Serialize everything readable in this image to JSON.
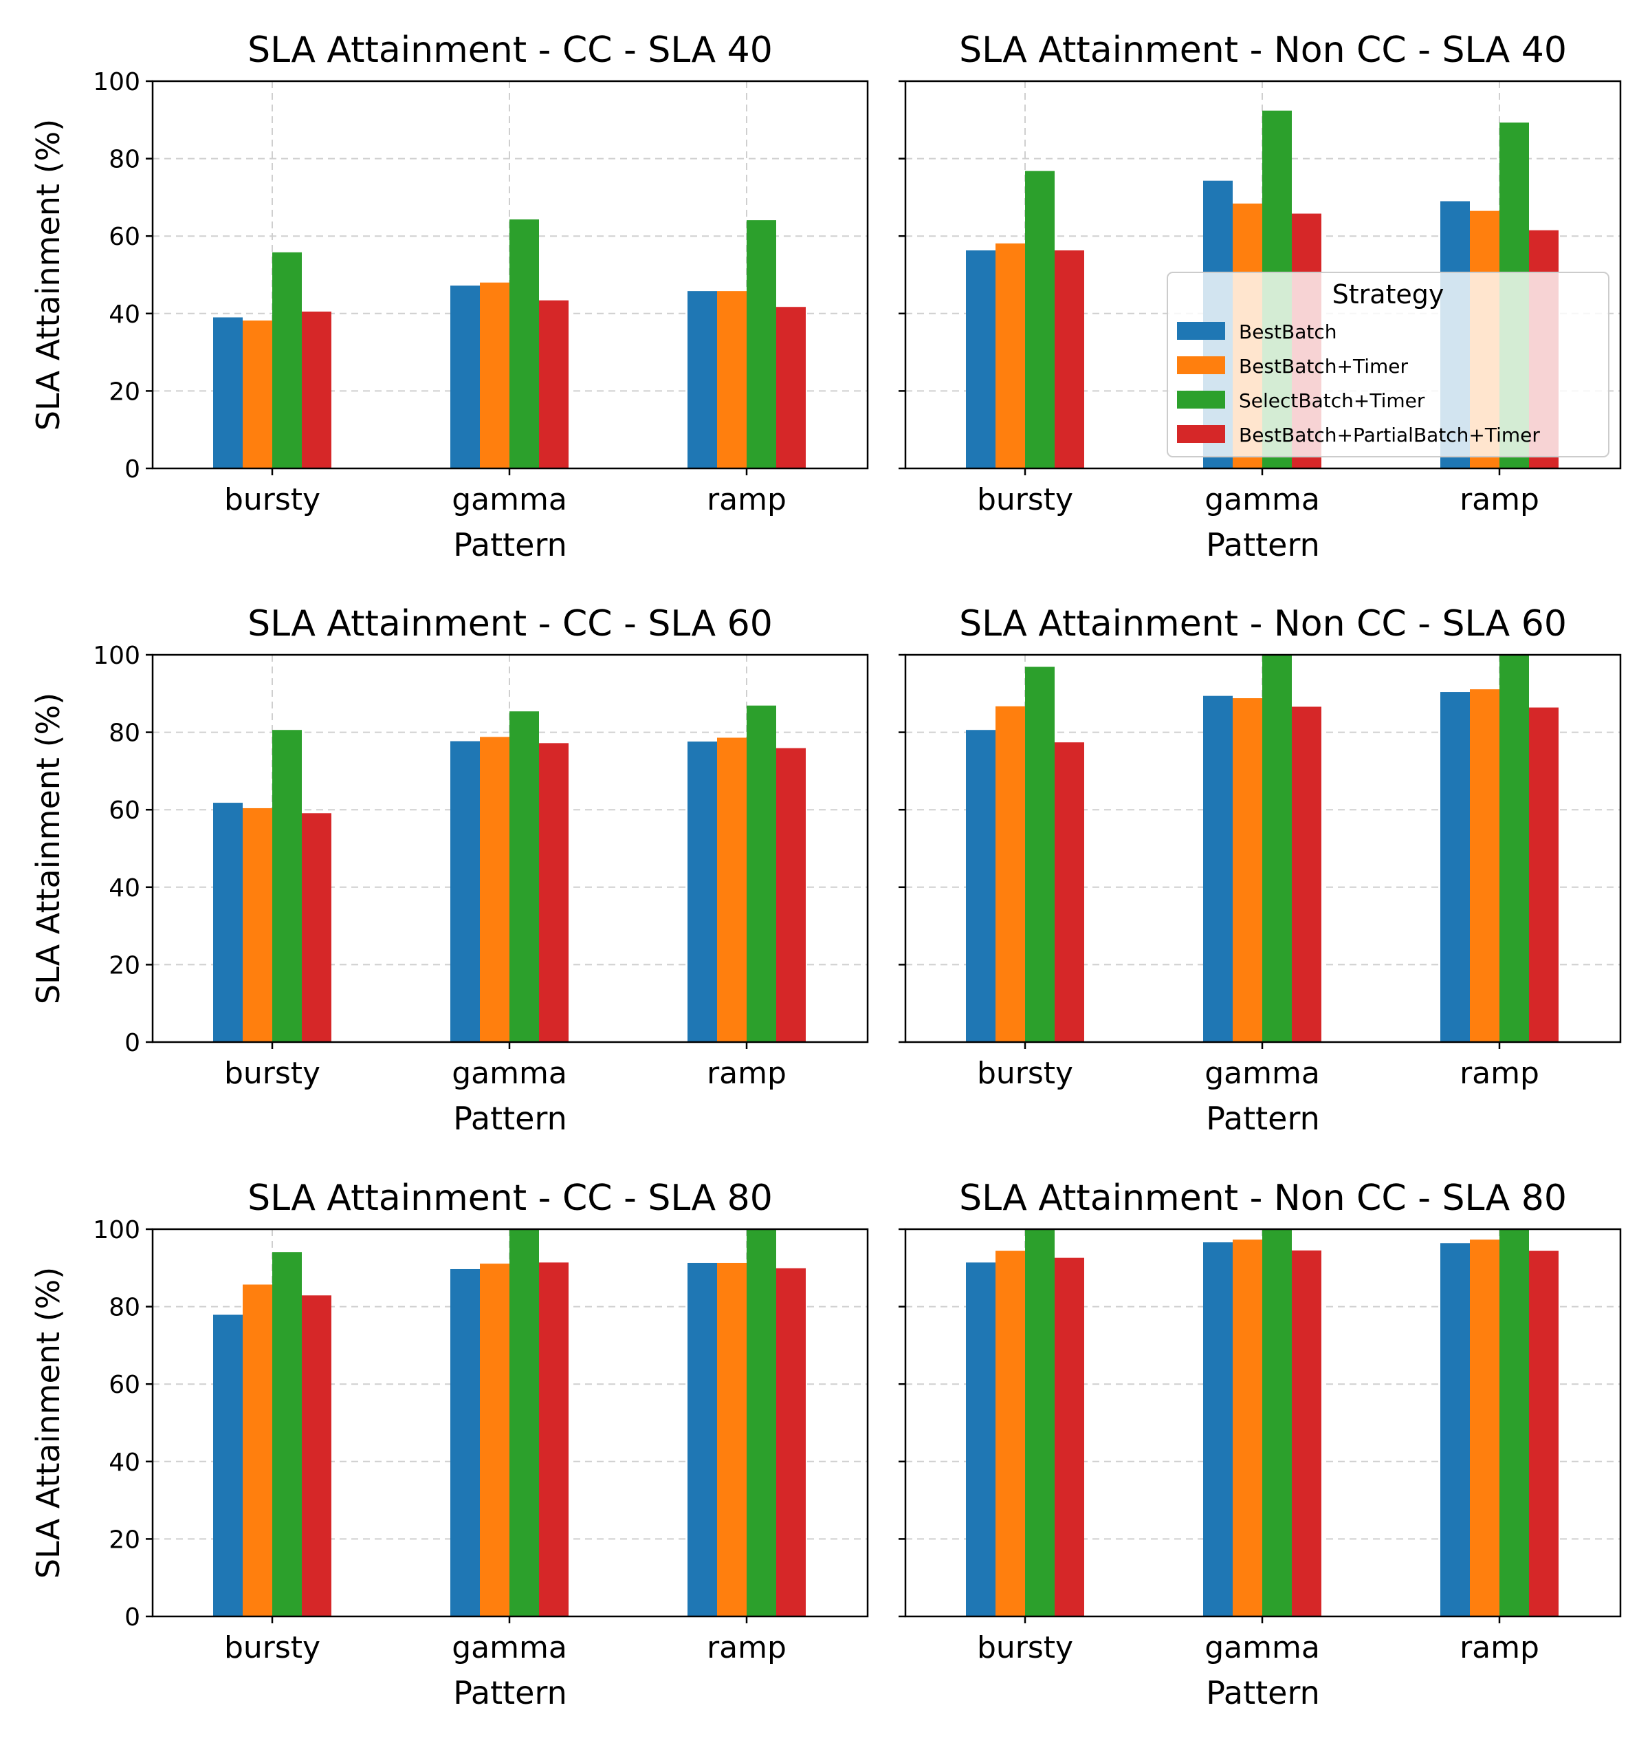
{
  "figure": {
    "xlabel": "Pattern",
    "ylabel": "SLA Attainment (%)",
    "legend_title": "Strategy"
  },
  "strategies": [
    {
      "name": "BestBatch",
      "color": "#1f77b4"
    },
    {
      "name": "BestBatch+Timer",
      "color": "#ff7f0e"
    },
    {
      "name": "SelectBatch+Timer",
      "color": "#2ca02c"
    },
    {
      "name": "BestBatch+PartialBatch+Timer",
      "color": "#d62728"
    }
  ],
  "chart_data": [
    {
      "type": "bar",
      "title": "SLA Attainment - CC - SLA 40",
      "xlabel": "Pattern",
      "ylabel": "SLA Attainment (%)",
      "ylim": [
        0,
        100
      ],
      "yticks": [
        0,
        20,
        40,
        60,
        80,
        100
      ],
      "grid": true,
      "categories": [
        "bursty",
        "gamma",
        "ramp"
      ],
      "series": [
        {
          "name": "BestBatch",
          "values": [
            39,
            47.2,
            45.8
          ]
        },
        {
          "name": "BestBatch+Timer",
          "values": [
            38.2,
            48,
            45.8
          ]
        },
        {
          "name": "SelectBatch+Timer",
          "values": [
            55.8,
            64.3,
            64.1
          ]
        },
        {
          "name": "BestBatch+PartialBatch+Timer",
          "values": [
            40.5,
            43.4,
            41.7
          ]
        }
      ]
    },
    {
      "type": "bar",
      "title": "SLA Attainment - Non CC - SLA 40",
      "xlabel": "Pattern",
      "ylim": [
        0,
        100
      ],
      "grid": true,
      "legend": "right",
      "categories": [
        "bursty",
        "gamma",
        "ramp"
      ],
      "series": [
        {
          "name": "BestBatch",
          "values": [
            56.3,
            74.3,
            69
          ]
        },
        {
          "name": "BestBatch+Timer",
          "values": [
            58.1,
            68.4,
            66.5
          ]
        },
        {
          "name": "SelectBatch+Timer",
          "values": [
            76.8,
            92.4,
            89.3
          ]
        },
        {
          "name": "BestBatch+PartialBatch+Timer",
          "values": [
            56.3,
            65.8,
            61.5
          ]
        }
      ]
    },
    {
      "type": "bar",
      "title": "SLA Attainment - CC - SLA 60",
      "xlabel": "Pattern",
      "ylabel": "SLA Attainment (%)",
      "ylim": [
        0,
        100
      ],
      "yticks": [
        0,
        20,
        40,
        60,
        80,
        100
      ],
      "grid": true,
      "categories": [
        "bursty",
        "gamma",
        "ramp"
      ],
      "series": [
        {
          "name": "BestBatch",
          "values": [
            61.8,
            77.7,
            77.6
          ]
        },
        {
          "name": "BestBatch+Timer",
          "values": [
            60.4,
            78.8,
            78.6
          ]
        },
        {
          "name": "SelectBatch+Timer",
          "values": [
            80.6,
            85.4,
            86.9
          ]
        },
        {
          "name": "BestBatch+PartialBatch+Timer",
          "values": [
            59.1,
            77.2,
            75.9
          ]
        }
      ]
    },
    {
      "type": "bar",
      "title": "SLA Attainment - Non CC - SLA 60",
      "xlabel": "Pattern",
      "ylim": [
        0,
        100
      ],
      "grid": true,
      "categories": [
        "bursty",
        "gamma",
        "ramp"
      ],
      "series": [
        {
          "name": "BestBatch",
          "values": [
            80.6,
            89.4,
            90.4
          ]
        },
        {
          "name": "BestBatch+Timer",
          "values": [
            86.7,
            88.8,
            91.1
          ]
        },
        {
          "name": "SelectBatch+Timer",
          "values": [
            96.9,
            100,
            100
          ]
        },
        {
          "name": "BestBatch+PartialBatch+Timer",
          "values": [
            77.4,
            86.6,
            86.4
          ]
        }
      ]
    },
    {
      "type": "bar",
      "title": "SLA Attainment - CC - SLA 80",
      "xlabel": "Pattern",
      "ylabel": "SLA Attainment (%)",
      "ylim": [
        0,
        100
      ],
      "yticks": [
        0,
        20,
        40,
        60,
        80,
        100
      ],
      "grid": true,
      "categories": [
        "bursty",
        "gamma",
        "ramp"
      ],
      "series": [
        {
          "name": "BestBatch",
          "values": [
            77.9,
            89.7,
            91.3
          ]
        },
        {
          "name": "BestBatch+Timer",
          "values": [
            85.7,
            91.1,
            91.3
          ]
        },
        {
          "name": "SelectBatch+Timer",
          "values": [
            94.1,
            100,
            100
          ]
        },
        {
          "name": "BestBatch+PartialBatch+Timer",
          "values": [
            82.9,
            91.4,
            89.9
          ]
        }
      ]
    },
    {
      "type": "bar",
      "title": "SLA Attainment - Non CC - SLA 80",
      "xlabel": "Pattern",
      "ylim": [
        0,
        100
      ],
      "grid": true,
      "categories": [
        "bursty",
        "gamma",
        "ramp"
      ],
      "series": [
        {
          "name": "BestBatch",
          "values": [
            91.4,
            96.6,
            96.4
          ]
        },
        {
          "name": "BestBatch+Timer",
          "values": [
            94.4,
            97.3,
            97.3
          ]
        },
        {
          "name": "SelectBatch+Timer",
          "values": [
            100,
            100,
            100
          ]
        },
        {
          "name": "BestBatch+PartialBatch+Timer",
          "values": [
            92.6,
            94.5,
            94.4
          ]
        }
      ]
    }
  ]
}
